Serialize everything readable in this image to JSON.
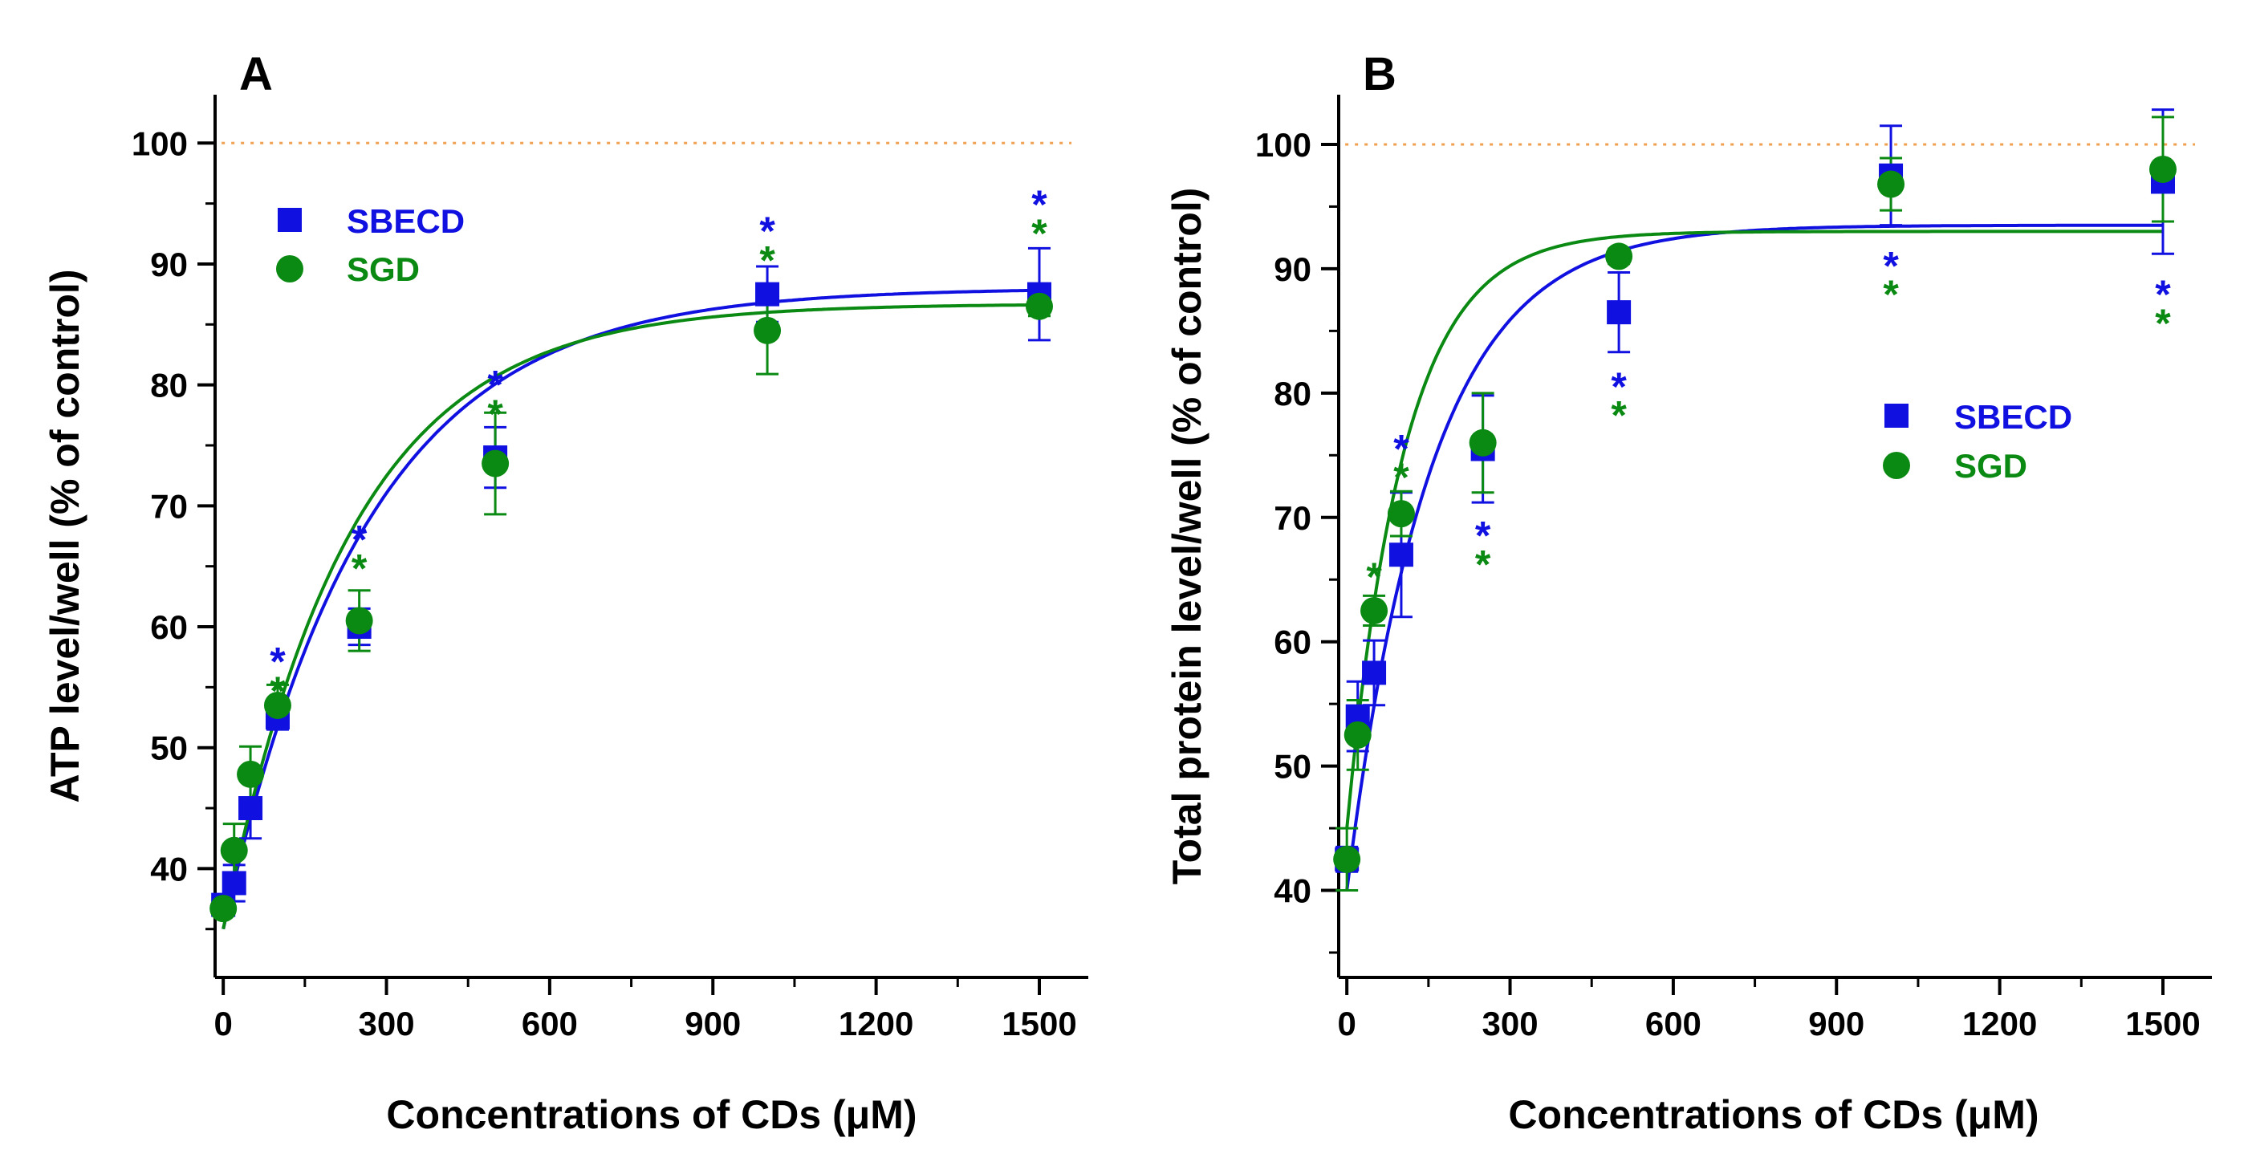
{
  "colors": {
    "sbecd": "#1010e0",
    "sgd": "#0a8a12",
    "reference": "#f0a050",
    "axis": "#000000"
  },
  "chart_data": [
    {
      "type": "scatter",
      "panel_label": "A",
      "xlabel": "Concentrations of CDs (μM)",
      "ylabel": "ATP level/well (% of control)",
      "xlim": [
        -15,
        1590
      ],
      "ylim": [
        31,
        104
      ],
      "xticks": [
        "0",
        "300",
        "600",
        "900",
        "1200",
        "1500"
      ],
      "yticks": [
        "40",
        "50",
        "60",
        "70",
        "80",
        "90",
        "100"
      ],
      "reference_line": 100,
      "legend_position": "top-left",
      "series": [
        {
          "name": "SBECD",
          "marker": "square",
          "x": [
            0,
            20,
            50,
            100,
            250,
            500,
            1000,
            1500
          ],
          "y": [
            37.0,
            38.8,
            45.0,
            52.5,
            60.0,
            74.0,
            87.5,
            87.5
          ],
          "err": [
            0.8,
            1.5,
            2.5,
            1.0,
            1.5,
            2.5,
            2.3,
            3.8
          ],
          "fit": {
            "ymin": 35.0,
            "ymax": 88.0,
            "k": 0.0038
          }
        },
        {
          "name": "SGD",
          "marker": "circle",
          "x": [
            0,
            20,
            50,
            100,
            250,
            500,
            1000,
            1500
          ],
          "y": [
            36.7,
            41.5,
            47.8,
            53.5,
            60.5,
            73.5,
            84.5,
            86.5
          ],
          "err": [
            0.5,
            2.2,
            2.3,
            1.7,
            2.5,
            4.2,
            3.6,
            0.8
          ],
          "fit": {
            "ymin": 35.0,
            "ymax": 86.7,
            "k": 0.0043
          }
        }
      ],
      "annotations": [
        {
          "text": "*",
          "x": 100,
          "series": "SBECD",
          "label_y": 57.7
        },
        {
          "text": "*",
          "x": 100,
          "series": "SGD",
          "label_y": 55.3
        },
        {
          "text": "*",
          "x": 250,
          "series": "SBECD",
          "label_y": 67.8
        },
        {
          "text": "*",
          "x": 250,
          "series": "SGD",
          "label_y": 65.4
        },
        {
          "text": "*",
          "x": 500,
          "series": "SBECD",
          "label_y": 80.6
        },
        {
          "text": "*",
          "x": 500,
          "series": "SGD",
          "label_y": 78.2
        },
        {
          "text": "*",
          "x": 1000,
          "series": "SBECD",
          "label_y": 93.3
        },
        {
          "text": "*",
          "x": 1000,
          "series": "SGD",
          "label_y": 90.9
        },
        {
          "text": "*",
          "x": 1500,
          "series": "SBECD",
          "label_y": 95.5
        },
        {
          "text": "*",
          "x": 1500,
          "series": "SGD",
          "label_y": 93.1
        }
      ]
    },
    {
      "type": "scatter",
      "panel_label": "B",
      "xlabel": "Concentrations of CDs (μM)",
      "ylabel": "Total protein level/well (% of control)",
      "xlim": [
        -15,
        1590
      ],
      "ylim": [
        33,
        104
      ],
      "xticks": [
        "0",
        "300",
        "600",
        "900",
        "1200",
        "1500"
      ],
      "yticks": [
        "40",
        "50",
        "60",
        "70",
        "80",
        "90",
        "100"
      ],
      "reference_line": 100,
      "legend_position": "center-right",
      "series": [
        {
          "name": "SBECD",
          "marker": "square",
          "x": [
            0,
            20,
            50,
            100,
            250,
            500,
            1000,
            1500
          ],
          "y": [
            42.5,
            54.0,
            57.5,
            67.0,
            75.5,
            86.5,
            97.5,
            97.0
          ],
          "err": [
            1.0,
            2.8,
            2.6,
            5.0,
            4.3,
            3.2,
            4.0,
            5.8
          ],
          "fit": {
            "ymin": 40.0,
            "ymax": 93.5,
            "k": 0.0065
          }
        },
        {
          "name": "SGD",
          "marker": "circle",
          "x": [
            0,
            20,
            50,
            100,
            250,
            500,
            1000,
            1500
          ],
          "y": [
            42.5,
            52.5,
            62.5,
            70.3,
            76.0,
            91.0,
            96.8,
            98.0
          ],
          "err": [
            2.5,
            2.8,
            1.2,
            1.8,
            4.0,
            0.6,
            2.1,
            4.2
          ],
          "fit": {
            "ymin": 45.0,
            "ymax": 93.0,
            "k": 0.0095
          }
        }
      ],
      "annotations": [
        {
          "text": "*",
          "x": 50,
          "series": "SGD",
          "label_y": 65.8
        },
        {
          "text": "*",
          "x": 100,
          "series": "SBECD",
          "label_y": 76.1
        },
        {
          "text": "*",
          "x": 100,
          "series": "SGD",
          "label_y": 73.8
        },
        {
          "text": "*",
          "x": 250,
          "series": "SBECD",
          "label_y": 69.1
        },
        {
          "text": "*",
          "x": 250,
          "series": "SGD",
          "label_y": 66.8
        },
        {
          "text": "*",
          "x": 500,
          "series": "SBECD",
          "label_y": 81.1
        },
        {
          "text": "*",
          "x": 500,
          "series": "SGD",
          "label_y": 78.8
        },
        {
          "text": "*",
          "x": 1000,
          "series": "SBECD",
          "label_y": 90.8
        },
        {
          "text": "*",
          "x": 1000,
          "series": "SGD",
          "label_y": 88.5
        },
        {
          "text": "*",
          "x": 1500,
          "series": "SBECD",
          "label_y": 88.5
        },
        {
          "text": "*",
          "x": 1500,
          "series": "SGD",
          "label_y": 86.2
        }
      ]
    }
  ]
}
